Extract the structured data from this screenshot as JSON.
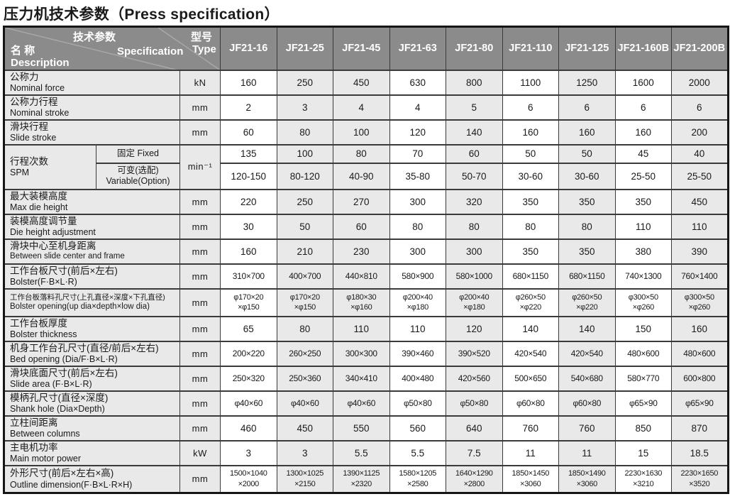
{
  "page_title": "压力机技术参数（Press specification）",
  "colors": {
    "header_bg": "#8b8b8b",
    "header_text": "#ffffff",
    "label_bg": "#e9e9e9",
    "shade_bg": "#e9e9e9",
    "border": "#3a3a3a",
    "text": "#1a1a1a"
  },
  "table": {
    "corner": {
      "param_cn": "技术参数",
      "param_en": "Specification",
      "name_cn": "名 称",
      "name_en": "Description",
      "type_cn": "型号",
      "type_en": "Type"
    },
    "models": [
      "JF21-16",
      "JF21-25",
      "JF21-45",
      "JF21-63",
      "JF21-80",
      "JF21-110",
      "JF21-125",
      "JF21-160B",
      "JF21-200B"
    ],
    "shaded_columns": [
      1,
      2,
      4,
      6,
      8
    ],
    "rows": [
      {
        "cn": "公称力",
        "en": "Nominal force",
        "unit": "kN",
        "values": [
          "160",
          "250",
          "450",
          "630",
          "800",
          "1100",
          "1250",
          "1600",
          "2000"
        ]
      },
      {
        "cn": "公称力行程",
        "en": "Nominal stroke",
        "unit": "mm",
        "values": [
          "2",
          "3",
          "4",
          "4",
          "5",
          "6",
          "6",
          "6",
          "6"
        ]
      },
      {
        "cn": "滑块行程",
        "en": "Slide stroke",
        "unit": "mm",
        "values": [
          "60",
          "80",
          "100",
          "120",
          "140",
          "160",
          "160",
          "160",
          "200"
        ]
      },
      {
        "cn": "行程次数",
        "en": "SPM",
        "unit": "min⁻¹",
        "subrows": [
          {
            "label": "固定 Fixed",
            "values": [
              "135",
              "100",
              "80",
              "70",
              "60",
              "50",
              "50",
              "45",
              "40"
            ]
          },
          {
            "label": "可变(选配)\nVariable(Option)",
            "values": [
              "120-150",
              "80-120",
              "40-90",
              "35-80",
              "50-70",
              "30-60",
              "30-60",
              "25-50",
              "25-50"
            ]
          }
        ]
      },
      {
        "cn": "最大装模高度",
        "en": "Max die height",
        "unit": "mm",
        "values": [
          "220",
          "250",
          "270",
          "300",
          "320",
          "350",
          "350",
          "350",
          "450"
        ]
      },
      {
        "cn": "装模高度调节量",
        "en": "Die height adjustment",
        "unit": "mm",
        "values": [
          "30",
          "50",
          "60",
          "80",
          "80",
          "80",
          "80",
          "110",
          "110"
        ]
      },
      {
        "cn": "滑块中心至机身距离",
        "en": "Between slide center and  frame",
        "unit": "mm",
        "values": [
          "160",
          "210",
          "230",
          "300",
          "300",
          "350",
          "350",
          "380",
          "390"
        ]
      },
      {
        "cn": "工作台板尺寸(前后×左右)",
        "en": "Bolster(F·B×L·R)",
        "unit": "mm",
        "values": [
          "310×700",
          "400×700",
          "440×810",
          "580×900",
          "580×1000",
          "680×1150",
          "680×1150",
          "740×1300",
          "760×1400"
        ]
      },
      {
        "cn": "工作台板落料孔尺寸(上孔直径×深度×下孔直径)",
        "en": "Bolster opening(up dia×depth×low dia)",
        "unit": "mm",
        "values": [
          "φ170×20\n×φ150",
          "φ170×20\n×φ150",
          "φ180×30\n×φ160",
          "φ200×40\n×φ180",
          "φ200×40\n×φ180",
          "φ260×50\n×φ220",
          "φ260×50\n×φ220",
          "φ300×50\n×φ260",
          "φ300×50\n×φ260"
        ]
      },
      {
        "cn": "工作台板厚度",
        "en": "Bolster thickness",
        "unit": "mm",
        "values": [
          "65",
          "80",
          "110",
          "110",
          "120",
          "140",
          "140",
          "150",
          "160"
        ]
      },
      {
        "cn": "机身工作台孔尺寸(直径/前后×左右)",
        "en": "Bed opening (Dia/F·B×L·R)",
        "unit": "mm",
        "values": [
          "200×220",
          "260×250",
          "300×300",
          "390×460",
          "390×520",
          "420×540",
          "420×540",
          "480×600",
          "480×600"
        ]
      },
      {
        "cn": "滑块底面尺寸(前后×左右)",
        "en": "Slide area (F·B×L·R)",
        "unit": "mm",
        "values": [
          "250×320",
          "250×360",
          "340×410",
          "400×480",
          "420×560",
          "500×650",
          "540×680",
          "580×770",
          "600×800"
        ]
      },
      {
        "cn": "模柄孔尺寸(直径×深度)",
        "en": "Shank hole (Dia×Depth)",
        "unit": "mm",
        "values": [
          "φ40×60",
          "φ40×60",
          "φ40×60",
          "φ50×80",
          "φ50×80",
          "φ60×80",
          "φ60×80",
          "φ65×90",
          "φ65×90"
        ]
      },
      {
        "cn": "立柱间距离",
        "en": "Between columns",
        "unit": "mm",
        "values": [
          "460",
          "450",
          "550",
          "560",
          "640",
          "760",
          "760",
          "850",
          "870"
        ]
      },
      {
        "cn": "主电机功率",
        "en": "Main motor power",
        "unit": "kW",
        "values": [
          "3",
          "3",
          "5.5",
          "5.5",
          "7.5",
          "11",
          "11",
          "15",
          "18.5"
        ]
      },
      {
        "cn": "外形尺寸(前后×左右×高)",
        "en": "Outline dimension(F·B×L·R×H)",
        "unit": "mm",
        "values": [
          "1500×1040\n×2000",
          "1300×1025\n×2150",
          "1390×1125\n×2320",
          "1580×1205\n×2580",
          "1640×1290\n×2800",
          "1850×1450\n×3060",
          "1850×1490\n×3060",
          "2230×1630\n×3210",
          "2230×1650\n×3520"
        ]
      }
    ]
  }
}
